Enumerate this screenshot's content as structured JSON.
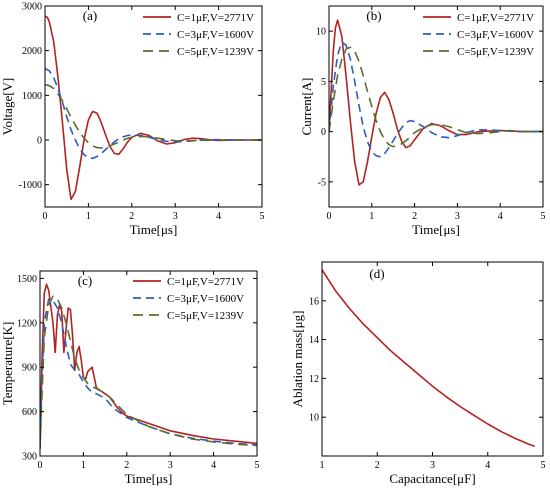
{
  "chart_data": [
    {
      "type": "line",
      "panel_tag": "(a)",
      "xlabel": "Time[μs]",
      "ylabel": "Voltage[V]",
      "xlim": [
        0,
        5
      ],
      "ylim": [
        -1500,
        3000
      ],
      "x_ticks": [
        0,
        1,
        2,
        3,
        4,
        5
      ],
      "y_ticks": [
        -1000,
        0,
        1000,
        2000,
        3000
      ],
      "legend_position": "top-right",
      "series": [
        {
          "name": "C=1μF,V=2771V",
          "color": "#b22222",
          "dash": "solid",
          "x": [
            0,
            0.05,
            0.1,
            0.2,
            0.3,
            0.4,
            0.5,
            0.6,
            0.7,
            0.8,
            0.9,
            1.0,
            1.1,
            1.2,
            1.3,
            1.4,
            1.5,
            1.6,
            1.7,
            1.8,
            1.9,
            2.0,
            2.2,
            2.4,
            2.6,
            2.8,
            3.0,
            3.2,
            3.4,
            3.6,
            3.8,
            4.0,
            4.5,
            5.0
          ],
          "y": [
            2771,
            2750,
            2650,
            2200,
            1400,
            400,
            -650,
            -1330,
            -1150,
            -600,
            10,
            450,
            640,
            600,
            380,
            100,
            -150,
            -300,
            -320,
            -200,
            -50,
            60,
            150,
            100,
            -20,
            -90,
            -60,
            10,
            40,
            30,
            5,
            -10,
            0,
            0
          ]
        },
        {
          "name": "C=3μF,V=1600V",
          "color": "#2a5dc9",
          "dash": "8,5",
          "x": [
            0,
            0.1,
            0.2,
            0.3,
            0.4,
            0.5,
            0.6,
            0.7,
            0.8,
            0.9,
            1.0,
            1.1,
            1.2,
            1.3,
            1.4,
            1.5,
            1.6,
            1.7,
            1.8,
            1.9,
            2.0,
            2.2,
            2.4,
            2.6,
            2.8,
            3.0,
            3.2,
            3.5,
            3.8,
            4.2,
            4.6,
            5.0
          ],
          "y": [
            1600,
            1550,
            1400,
            1150,
            850,
            520,
            230,
            0,
            -200,
            -330,
            -400,
            -410,
            -370,
            -300,
            -210,
            -120,
            -40,
            30,
            70,
            100,
            110,
            100,
            60,
            10,
            -30,
            -45,
            -35,
            -10,
            10,
            5,
            0,
            0
          ]
        },
        {
          "name": "C=5μF,V=1239V",
          "color": "#5a6e2a",
          "dash": "10,6",
          "x": [
            0,
            0.1,
            0.2,
            0.3,
            0.4,
            0.5,
            0.6,
            0.7,
            0.8,
            0.9,
            1.0,
            1.1,
            1.2,
            1.3,
            1.4,
            1.5,
            1.6,
            1.7,
            1.8,
            1.9,
            2.0,
            2.2,
            2.4,
            2.6,
            2.8,
            3.0,
            3.3,
            3.6,
            4.0,
            4.5,
            5.0
          ],
          "y": [
            1239,
            1215,
            1150,
            1030,
            880,
            700,
            510,
            330,
            170,
            40,
            -60,
            -130,
            -170,
            -180,
            -165,
            -130,
            -90,
            -45,
            0,
            35,
            60,
            80,
            70,
            40,
            10,
            -15,
            -20,
            -10,
            0,
            5,
            0
          ]
        }
      ]
    },
    {
      "type": "line",
      "panel_tag": "(b)",
      "xlabel": "Time[μs]",
      "ylabel": "Current[A]",
      "xlim": [
        0,
        5
      ],
      "ylim": [
        -7.5,
        12.5
      ],
      "x_ticks": [
        0,
        1,
        2,
        3,
        4,
        5
      ],
      "y_ticks": [
        -5,
        0,
        5,
        10
      ],
      "legend_position": "top-right",
      "series": [
        {
          "name": "C=1μF,V=2771V",
          "color": "#b22222",
          "dash": "solid",
          "x": [
            0,
            0.05,
            0.1,
            0.15,
            0.2,
            0.3,
            0.4,
            0.5,
            0.6,
            0.7,
            0.8,
            0.9,
            1.0,
            1.1,
            1.2,
            1.3,
            1.4,
            1.5,
            1.6,
            1.7,
            1.8,
            1.9,
            2.0,
            2.2,
            2.4,
            2.6,
            2.8,
            3.0,
            3.2,
            3.5,
            4.0,
            4.5,
            5.0
          ],
          "y": [
            0,
            4,
            8,
            10.3,
            11.1,
            9.5,
            5.5,
            1.0,
            -3.0,
            -5.3,
            -5.0,
            -3.0,
            -0.5,
            1.8,
            3.4,
            3.9,
            3.2,
            1.8,
            0.2,
            -1.0,
            -1.6,
            -1.4,
            -0.8,
            0.3,
            0.8,
            0.6,
            0.1,
            -0.3,
            -0.3,
            0,
            0.1,
            0,
            0
          ]
        },
        {
          "name": "C=3μF,V=1600V",
          "color": "#2a5dc9",
          "dash": "8,5",
          "x": [
            0,
            0.1,
            0.2,
            0.3,
            0.4,
            0.5,
            0.6,
            0.7,
            0.8,
            0.9,
            1.0,
            1.1,
            1.2,
            1.3,
            1.4,
            1.5,
            1.6,
            1.7,
            1.8,
            1.9,
            2.0,
            2.2,
            2.4,
            2.6,
            2.8,
            3.0,
            3.2,
            3.5,
            4.0,
            4.5,
            5.0
          ],
          "y": [
            0,
            4.5,
            7.6,
            8.9,
            8.6,
            7.2,
            5.0,
            2.6,
            0.5,
            -1.0,
            -2.0,
            -2.4,
            -2.5,
            -2.2,
            -1.6,
            -0.9,
            -0.2,
            0.4,
            0.9,
            1.1,
            1.0,
            0.5,
            -0.1,
            -0.5,
            -0.6,
            -0.4,
            -0.1,
            0.2,
            0.1,
            0,
            0
          ]
        },
        {
          "name": "C=5μF,V=1239V",
          "color": "#5a6e2a",
          "dash": "10,6",
          "x": [
            0,
            0.1,
            0.2,
            0.3,
            0.4,
            0.5,
            0.6,
            0.7,
            0.8,
            0.9,
            1.0,
            1.1,
            1.2,
            1.3,
            1.4,
            1.5,
            1.6,
            1.7,
            1.8,
            1.9,
            2.0,
            2.2,
            2.4,
            2.6,
            2.8,
            3.0,
            3.2,
            3.5,
            3.8,
            4.2,
            4.6,
            5.0
          ],
          "y": [
            0,
            3.0,
            5.6,
            7.2,
            8.2,
            8.4,
            8.0,
            7.0,
            5.6,
            4.0,
            2.5,
            1.1,
            0,
            -0.8,
            -1.3,
            -1.5,
            -1.4,
            -1.2,
            -0.9,
            -0.5,
            -0.1,
            0.4,
            0.7,
            0.7,
            0.5,
            0.2,
            -0.1,
            -0.2,
            -0.1,
            0.1,
            0,
            0
          ]
        }
      ]
    },
    {
      "type": "line",
      "panel_tag": "(c)",
      "xlabel": "Time[μs]",
      "ylabel": "Temperature[K]",
      "xlim": [
        0,
        5
      ],
      "ylim": [
        300,
        1550
      ],
      "x_ticks": [
        0,
        1,
        2,
        3,
        4,
        5
      ],
      "y_ticks": [
        300,
        600,
        900,
        1200,
        1500
      ],
      "legend_position": "top-right",
      "series": [
        {
          "name": "C=1μF,V=2771V",
          "color": "#b22222",
          "dash": "solid",
          "x": [
            0,
            0.05,
            0.1,
            0.15,
            0.2,
            0.3,
            0.35,
            0.4,
            0.45,
            0.5,
            0.55,
            0.6,
            0.65,
            0.7,
            0.75,
            0.8,
            0.85,
            0.9,
            0.95,
            1.0,
            1.05,
            1.1,
            1.2,
            1.25,
            1.3,
            1.4,
            1.5,
            1.6,
            1.7,
            1.8,
            1.9,
            2.0,
            2.2,
            2.5,
            3.0,
            3.5,
            4.0,
            4.5,
            5.0
          ],
          "y": [
            350,
            1000,
            1400,
            1460,
            1420,
            1200,
            1000,
            1250,
            1320,
            1280,
            1000,
            1150,
            1300,
            1290,
            1120,
            880,
            1000,
            1040,
            950,
            830,
            820,
            870,
            900,
            830,
            760,
            740,
            720,
            700,
            660,
            620,
            590,
            570,
            550,
            520,
            470,
            440,
            415,
            400,
            385
          ]
        },
        {
          "name": "C=3μF,V=1600V",
          "color": "#2a5dc9",
          "dash": "8,5",
          "x": [
            0,
            0.05,
            0.1,
            0.2,
            0.3,
            0.4,
            0.5,
            0.6,
            0.7,
            0.8,
            0.9,
            1.0,
            1.1,
            1.2,
            1.3,
            1.5,
            1.7,
            2.0,
            2.5,
            3.0,
            3.5,
            4.0,
            4.5,
            5.0
          ],
          "y": [
            350,
            850,
            1200,
            1360,
            1350,
            1300,
            1200,
            1050,
            920,
            880,
            850,
            800,
            760,
            730,
            720,
            690,
            620,
            560,
            500,
            450,
            420,
            400,
            385,
            375
          ]
        },
        {
          "name": "C=5μF,V=1239V",
          "color": "#5a6e2a",
          "dash": "10,6",
          "x": [
            0,
            0.05,
            0.1,
            0.2,
            0.3,
            0.4,
            0.5,
            0.6,
            0.7,
            0.8,
            0.9,
            1.0,
            1.1,
            1.2,
            1.4,
            1.6,
            1.8,
            2.0,
            2.5,
            3.0,
            3.5,
            4.0,
            4.5,
            5.0
          ],
          "y": [
            350,
            750,
            1100,
            1320,
            1380,
            1360,
            1300,
            1200,
            1080,
            960,
            880,
            830,
            790,
            770,
            740,
            700,
            640,
            580,
            500,
            450,
            415,
            395,
            380,
            370
          ]
        }
      ]
    },
    {
      "type": "line",
      "panel_tag": "(d)",
      "xlabel": "Capacitance[μF]",
      "ylabel": "Ablation mass[μg]",
      "xlim": [
        1,
        5
      ],
      "ylim": [
        8,
        18
      ],
      "x_ticks": [
        1,
        2,
        3,
        4,
        5
      ],
      "y_ticks": [
        10,
        12,
        14,
        16
      ],
      "legend_position": "none",
      "series": [
        {
          "color": "#b22222",
          "dash": "solid",
          "x": [
            1.0,
            1.25,
            1.5,
            1.75,
            2.0,
            2.25,
            2.5,
            2.75,
            3.0,
            3.25,
            3.5,
            3.75,
            4.0,
            4.25,
            4.5,
            4.75,
            4.85
          ],
          "y": [
            17.6,
            16.5,
            15.6,
            14.8,
            14.1,
            13.4,
            12.8,
            12.2,
            11.6,
            11.05,
            10.55,
            10.1,
            9.65,
            9.25,
            8.9,
            8.6,
            8.5
          ]
        }
      ]
    }
  ]
}
